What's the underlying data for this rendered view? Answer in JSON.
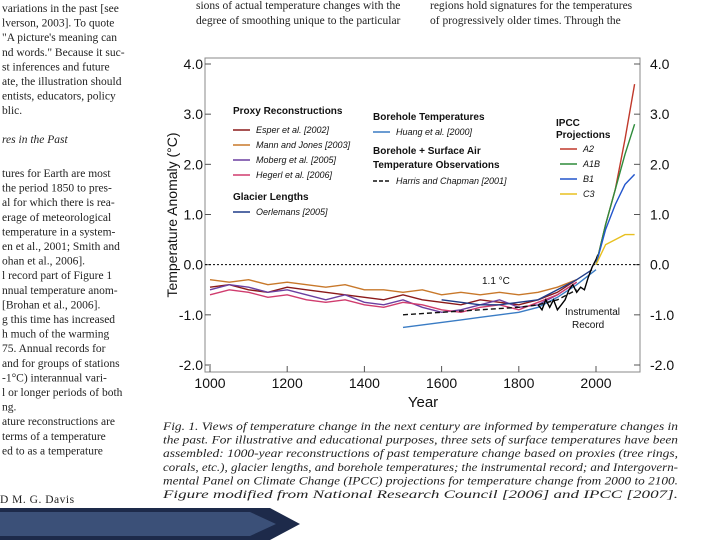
{
  "page": {
    "left_column": [
      "variations in the past [see",
      "lverson, 2003]. To quote",
      "\"A picture's meaning can",
      "nd words.\" Because it suc-",
      "st inferences and future",
      "ate, the illustration should",
      "entists, educators, policy",
      "blic."
    ],
    "left_heading": "res in the Past",
    "left_column_2": [
      "tures for Earth are most",
      "the period 1850 to pres-",
      "al for which there is rea-",
      "erage of meteorological",
      "temperature in a system-",
      "en et al., 2001; Smith and",
      "ohan et al., 2006].",
      "l record part of Figure 1",
      "nnual temperature anom-",
      "[Brohan et al., 2006].",
      "g this time has increased",
      "h much of the warming",
      "75. Annual records for",
      "and for groups of stations",
      "-1°C) interannual vari-",
      "l or longer periods of both",
      "ng.",
      "ature reconstructions are",
      "terms of a temperature",
      "ed to as a temperature"
    ],
    "top_column_1": [
      "sions of actual temperature changes with the",
      "degree of smoothing unique to the particular"
    ],
    "top_column_2": [
      "regions hold signatures for the temperatures",
      "of progressively older times. Through the"
    ],
    "caption": [
      "Fig. 1. Views of temperature change in the next century are informed by temperature changes in",
      "the past. For illustrative and educational purposes, three sets of surface temperatures have been",
      "assembled: 1000-year reconstructions of past temperature change based on proxies (tree rings,",
      "corals, etc.), glacier lengths, and borehole temperatures; the instrumental record; and Intergovern-",
      "mental Panel on Climate Change (IPCC) projections for temperature change from 2000 to 2100.",
      "Figure modified from National Research Council [2006] and IPCC [2007]."
    ],
    "footer": "D M. G. Davis"
  },
  "chart_data": {
    "type": "line",
    "y_label": "Temperature Anomaly (°C)",
    "x_label": "Year",
    "xlim": [
      1000,
      2100
    ],
    "xticks": [
      1000,
      1200,
      1400,
      1600,
      1800,
      2000
    ],
    "ylim": [
      -2,
      4
    ],
    "yticks": [
      {
        "value": -2,
        "label": "-2.0"
      },
      {
        "value": -1,
        "label": "-1.0"
      },
      {
        "value": 0,
        "label": "0.0"
      },
      {
        "value": 1,
        "label": "1.0"
      },
      {
        "value": 2,
        "label": "2.0"
      },
      {
        "value": 3,
        "label": "3.0"
      },
      {
        "value": 4,
        "label": "4.0"
      }
    ],
    "y2ticks": [
      {
        "value": -2,
        "label": "-2.0"
      },
      {
        "value": -1,
        "label": "-1.0"
      },
      {
        "value": 0,
        "label": "0.0"
      },
      {
        "value": 1,
        "label": "1.0"
      },
      {
        "value": 2,
        "label": "2.0"
      },
      {
        "value": 3,
        "label": "3.0"
      },
      {
        "value": 4,
        "label": "4.0"
      }
    ],
    "zero_line": true,
    "legend_titles": [
      "Proxy Reconstructions",
      "Glacier Lengths",
      "Borehole Temperatures",
      "Borehole + Surface Air",
      "Temperature Observations",
      "IPCC",
      "Projections"
    ],
    "annotations": [
      "1.1 °C",
      "Instrumental",
      "Record"
    ],
    "series": [
      {
        "name": "Esper et al. [2002]",
        "color": "#8b1a1a",
        "x": [
          1000,
          1050,
          1100,
          1150,
          1200,
          1250,
          1300,
          1350,
          1400,
          1450,
          1500,
          1550,
          1600,
          1650,
          1700,
          1750,
          1800,
          1850,
          1900,
          1950
        ],
        "values": [
          -0.45,
          -0.4,
          -0.5,
          -0.55,
          -0.45,
          -0.5,
          -0.55,
          -0.6,
          -0.65,
          -0.7,
          -0.6,
          -0.7,
          -0.75,
          -0.8,
          -0.7,
          -0.75,
          -0.8,
          -0.7,
          -0.55,
          -0.3
        ]
      },
      {
        "name": "Mann and Jones [2003]",
        "color": "#c8782a",
        "x": [
          1000,
          1050,
          1100,
          1150,
          1200,
          1250,
          1300,
          1350,
          1400,
          1450,
          1500,
          1550,
          1600,
          1650,
          1700,
          1750,
          1800,
          1850,
          1900,
          1950
        ],
        "values": [
          -0.3,
          -0.35,
          -0.3,
          -0.4,
          -0.35,
          -0.4,
          -0.45,
          -0.4,
          -0.5,
          -0.5,
          -0.55,
          -0.5,
          -0.6,
          -0.55,
          -0.6,
          -0.55,
          -0.6,
          -0.55,
          -0.45,
          -0.3
        ]
      },
      {
        "name": "Moberg et al. [2005]",
        "color": "#6b3fa0",
        "x": [
          1000,
          1050,
          1100,
          1150,
          1200,
          1250,
          1300,
          1350,
          1400,
          1450,
          1500,
          1550,
          1600,
          1650,
          1700,
          1750,
          1800,
          1850,
          1900,
          1950
        ],
        "values": [
          -0.5,
          -0.4,
          -0.45,
          -0.55,
          -0.5,
          -0.6,
          -0.7,
          -0.6,
          -0.75,
          -0.8,
          -0.7,
          -0.85,
          -0.95,
          -0.9,
          -0.8,
          -0.7,
          -0.85,
          -0.8,
          -0.6,
          -0.35
        ]
      },
      {
        "name": "Hegerl et al. [2006]",
        "color": "#d03c6e",
        "x": [
          1000,
          1050,
          1100,
          1150,
          1200,
          1250,
          1300,
          1350,
          1400,
          1450,
          1500,
          1550,
          1600,
          1650,
          1700,
          1750,
          1800,
          1850,
          1900,
          1950
        ],
        "values": [
          -0.6,
          -0.5,
          -0.55,
          -0.65,
          -0.6,
          -0.7,
          -0.75,
          -0.7,
          -0.8,
          -0.85,
          -0.75,
          -0.8,
          -0.9,
          -0.95,
          -0.85,
          -0.8,
          -0.9,
          -0.75,
          -0.6,
          -0.35
        ]
      },
      {
        "name": "Oerlemans [2005]",
        "color": "#1f3c88",
        "x": [
          1600,
          1650,
          1700,
          1750,
          1800,
          1850,
          1900,
          1950,
          1990
        ],
        "values": [
          -0.7,
          -0.75,
          -0.8,
          -0.8,
          -0.75,
          -0.7,
          -0.5,
          -0.3,
          -0.1
        ]
      },
      {
        "name": "Huang et al. [2000]",
        "color": "#3a7cc4",
        "x": [
          1500,
          1550,
          1600,
          1650,
          1700,
          1750,
          1800,
          1850,
          1900,
          1950,
          2000
        ],
        "values": [
          -1.25,
          -1.2,
          -1.15,
          -1.1,
          -1.05,
          -1.0,
          -0.95,
          -0.85,
          -0.65,
          -0.4,
          -0.1
        ]
      },
      {
        "name": "Harris and Chapman [2001]",
        "color": "#111111",
        "dashed": true,
        "x": [
          1500,
          1600,
          1700,
          1800,
          1850,
          1900,
          1950
        ],
        "values": [
          -1.0,
          -0.95,
          -0.9,
          -0.85,
          -0.8,
          -0.7,
          -0.5
        ]
      },
      {
        "color": "#000000",
        "x": [
          1850,
          1860,
          1870,
          1880,
          1890,
          1900,
          1910,
          1920,
          1930,
          1940,
          1950,
          1960,
          1970,
          1980,
          1990,
          2000,
          2005
        ],
        "values": [
          -0.8,
          -0.9,
          -0.7,
          -0.85,
          -0.7,
          -0.9,
          -0.8,
          -0.7,
          -0.5,
          -0.4,
          -0.55,
          -0.45,
          -0.5,
          -0.25,
          -0.05,
          0.1,
          0.2
        ]
      },
      {
        "name": "A2",
        "color": "#c0392b",
        "x": [
          2000,
          2025,
          2050,
          2075,
          2100
        ],
        "values": [
          0.0,
          0.8,
          1.5,
          2.5,
          3.6
        ]
      },
      {
        "name": "A1B",
        "color": "#2e8b3a",
        "x": [
          2000,
          2025,
          2050,
          2075,
          2100
        ],
        "values": [
          0.0,
          0.8,
          1.5,
          2.2,
          2.8
        ]
      },
      {
        "name": "B1",
        "color": "#2255cc",
        "x": [
          2000,
          2025,
          2050,
          2075,
          2100
        ],
        "values": [
          0.0,
          0.7,
          1.2,
          1.6,
          1.8
        ]
      },
      {
        "name": "C3",
        "color": "#e8c020",
        "x": [
          2000,
          2025,
          2050,
          2075,
          2100
        ],
        "values": [
          0.0,
          0.4,
          0.5,
          0.6,
          0.6
        ]
      }
    ]
  }
}
